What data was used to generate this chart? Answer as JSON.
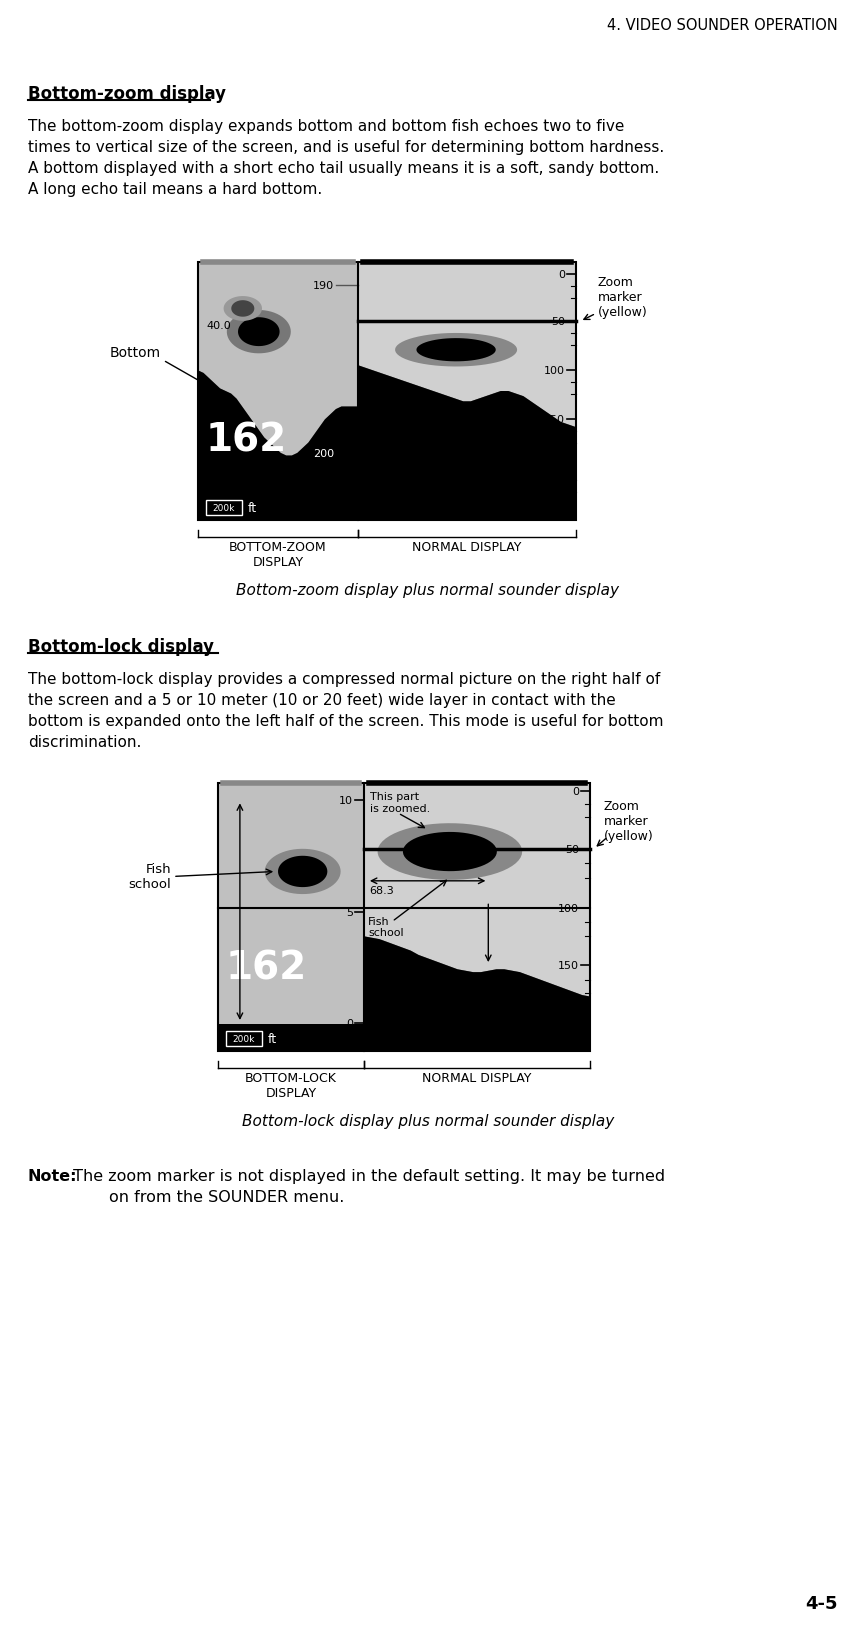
{
  "page_header": "4. VIDEO SOUNDER OPERATION",
  "page_number": "4-5",
  "section1_title": "Bottom-zoom display",
  "section1_text": [
    "The bottom-zoom display expands bottom and bottom fish echoes two to five",
    "times to vertical size of the screen, and is useful for determining bottom hardness.",
    "A bottom displayed with a short echo tail usually means it is a soft, sandy bottom.",
    "A long echo tail means a hard bottom."
  ],
  "section2_title": "Bottom-lock display",
  "section2_text": [
    "The bottom-lock display provides a compressed normal picture on the right half of",
    "the screen and a 5 or 10 meter (10 or 20 feet) wide layer in contact with the",
    "bottom is expanded onto the left half of the screen. This mode is useful for bottom",
    "discrimination."
  ],
  "note_bold": "Note:",
  "note_text": " The zoom marker is not displayed in the default setting. It may be turned",
  "note_text2": "        on from the SOUNDER menu.",
  "fig1_caption": "Bottom-zoom display plus normal sounder display",
  "fig2_caption": "Bottom-lock display plus normal sounder display",
  "fig1_zoom_marker": "Zoom\nmarker\n(yellow)",
  "fig1_bottom_left": "BOTTOM-ZOOM\nDISPLAY",
  "fig1_bottom_right": "NORMAL DISPLAY",
  "fig2_zoom_marker": "Zoom\nmarker\n(yellow)",
  "fig2_fish_school_left": "Fish\nschool",
  "fig2_fish_school_right": "Fish\nschool",
  "fig2_this_part": "This part\nis zoomed.",
  "fig2_bottom_left": "BOTTOM-LOCK\nDISPLAY",
  "fig2_bottom_right": "NORMAL DISPLAY",
  "bg_color": "#ffffff"
}
